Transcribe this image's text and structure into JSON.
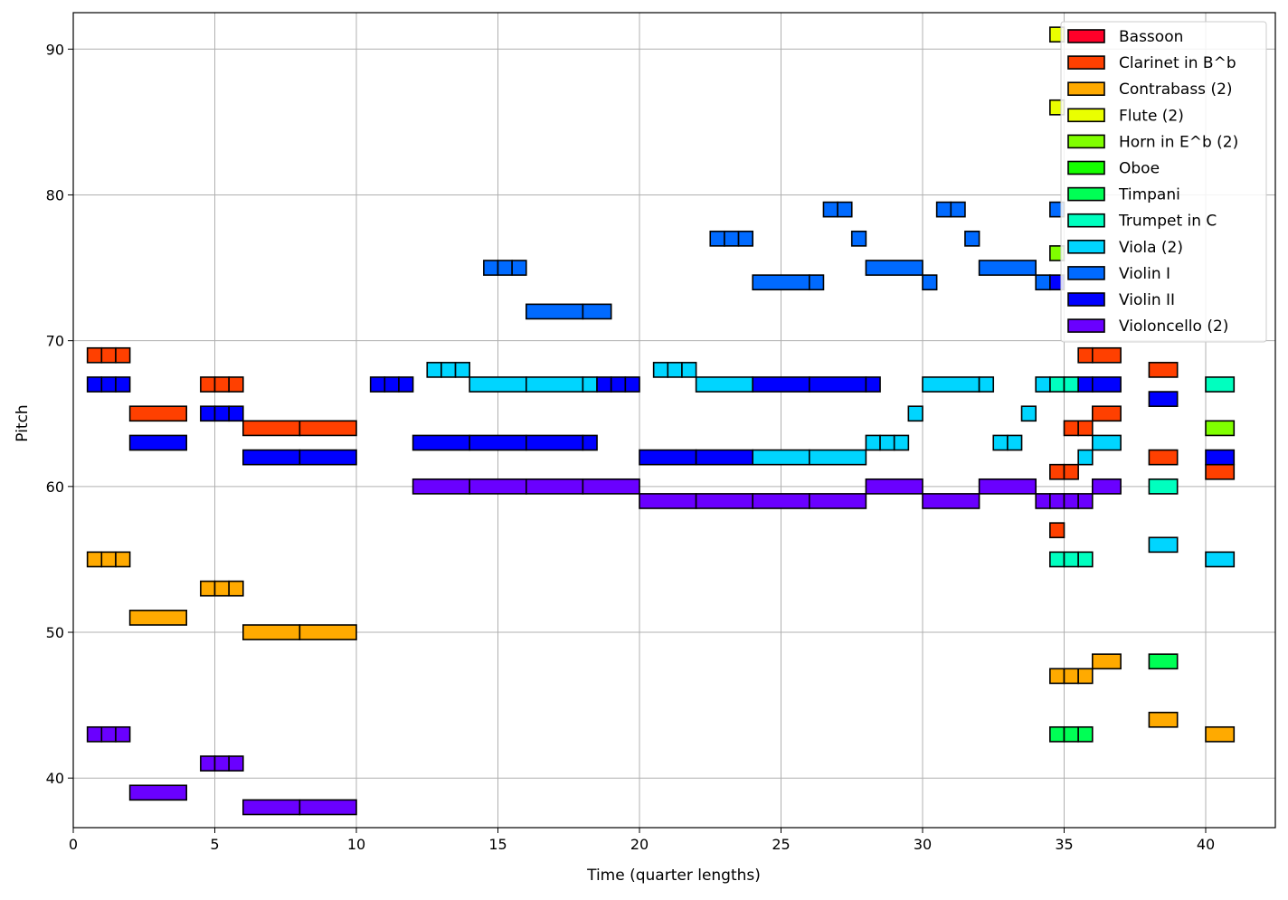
{
  "chart_data": {
    "type": "piano-roll",
    "title": "",
    "xlabel": "Time (quarter lengths)",
    "ylabel": "Pitch",
    "xlim": [
      0,
      42.46
    ],
    "ylim": [
      36.6,
      92.5
    ],
    "xticks": [
      0,
      5,
      10,
      15,
      20,
      25,
      30,
      35,
      40
    ],
    "yticks": [
      40,
      50,
      60,
      70,
      80,
      90
    ],
    "grid": true,
    "legend_position": "top-right",
    "series": [
      {
        "name": "Bassoon",
        "color": "#ff0029",
        "notes": []
      },
      {
        "name": "Clarinet in B^b",
        "color": "#ff4000",
        "notes": [
          [
            0.5,
            0.5,
            69
          ],
          [
            1,
            0.5,
            69
          ],
          [
            1.5,
            0.5,
            69
          ],
          [
            2,
            2,
            65
          ],
          [
            4.5,
            0.5,
            67
          ],
          [
            5,
            0.5,
            67
          ],
          [
            5.5,
            0.5,
            67
          ],
          [
            6,
            2,
            64
          ],
          [
            8,
            2,
            64
          ],
          [
            35.5,
            0.5,
            69
          ],
          [
            36,
            1,
            69
          ],
          [
            38,
            1,
            68
          ],
          [
            36,
            1,
            65
          ],
          [
            35,
            0.5,
            64
          ],
          [
            35.5,
            0.5,
            64
          ],
          [
            38,
            1,
            62
          ],
          [
            34.5,
            0.5,
            61
          ],
          [
            35,
            0.5,
            61
          ],
          [
            40,
            1,
            61
          ],
          [
            34.5,
            0.5,
            57
          ]
        ]
      },
      {
        "name": "Contrabass (2)",
        "color": "#ffaa00",
        "notes": [
          [
            0.5,
            0.5,
            55
          ],
          [
            1,
            0.5,
            55
          ],
          [
            1.5,
            0.5,
            55
          ],
          [
            2,
            2,
            51
          ],
          [
            4.5,
            0.5,
            53
          ],
          [
            5,
            0.5,
            53
          ],
          [
            5.5,
            0.5,
            53
          ],
          [
            6,
            2,
            50
          ],
          [
            8,
            2,
            50
          ],
          [
            36,
            1,
            48
          ],
          [
            34.5,
            0.5,
            47
          ],
          [
            35,
            0.5,
            47
          ],
          [
            35.5,
            0.5,
            47
          ],
          [
            38,
            1,
            44
          ],
          [
            40,
            1,
            43
          ]
        ]
      },
      {
        "name": "Flute (2)",
        "color": "#eaff00",
        "notes": [
          [
            34.5,
            0.5,
            91
          ],
          [
            34.5,
            0.5,
            86
          ]
        ]
      },
      {
        "name": "Horn in E^b (2)",
        "color": "#80ff00",
        "notes": [
          [
            34.5,
            0.5,
            76
          ],
          [
            40,
            1,
            64
          ]
        ]
      },
      {
        "name": "Oboe",
        "color": "#15ff00",
        "notes": []
      },
      {
        "name": "Timpani",
        "color": "#00ff55",
        "notes": [
          [
            38,
            1,
            48
          ],
          [
            34.5,
            0.5,
            43
          ],
          [
            35,
            0.5,
            43
          ],
          [
            35.5,
            0.5,
            43
          ]
        ]
      },
      {
        "name": "Trumpet in C",
        "color": "#00ffbf",
        "notes": [
          [
            34.5,
            0.5,
            67
          ],
          [
            35,
            0.5,
            67
          ],
          [
            40,
            1,
            67
          ],
          [
            38,
            1,
            60
          ],
          [
            34.5,
            0.5,
            55
          ],
          [
            35,
            0.5,
            55
          ],
          [
            35.5,
            0.5,
            55
          ]
        ]
      },
      {
        "name": "Viola (2)",
        "color": "#00d5ff",
        "notes": [
          [
            12.5,
            0.5,
            68
          ],
          [
            13,
            0.5,
            68
          ],
          [
            13.5,
            0.5,
            68
          ],
          [
            14,
            2,
            67
          ],
          [
            16,
            2,
            67
          ],
          [
            18,
            0.5,
            67
          ],
          [
            20.5,
            0.5,
            68
          ],
          [
            21,
            0.5,
            68
          ],
          [
            21.5,
            0.5,
            68
          ],
          [
            22,
            2,
            67
          ],
          [
            24,
            2,
            62
          ],
          [
            26,
            2,
            62
          ],
          [
            28,
            0.5,
            63
          ],
          [
            28.5,
            0.5,
            63
          ],
          [
            29,
            0.5,
            63
          ],
          [
            29.5,
            0.5,
            65
          ],
          [
            30,
            2,
            67
          ],
          [
            32,
            0.5,
            67
          ],
          [
            32.5,
            0.5,
            63
          ],
          [
            33,
            0.5,
            63
          ],
          [
            33.5,
            0.5,
            65
          ],
          [
            34,
            0.5,
            67
          ],
          [
            36,
            1,
            63
          ],
          [
            35.5,
            0.5,
            62
          ],
          [
            38,
            1,
            56
          ],
          [
            40,
            1,
            55
          ]
        ]
      },
      {
        "name": "Violin I",
        "color": "#006aff",
        "notes": [
          [
            14.5,
            0.5,
            75
          ],
          [
            15,
            0.5,
            75
          ],
          [
            15.5,
            0.5,
            75
          ],
          [
            16,
            2,
            72
          ],
          [
            18,
            1,
            72
          ],
          [
            22.5,
            0.5,
            77
          ],
          [
            23,
            0.5,
            77
          ],
          [
            23.5,
            0.5,
            77
          ],
          [
            24,
            2,
            74
          ],
          [
            26,
            0.5,
            74
          ],
          [
            26.5,
            0.5,
            79
          ],
          [
            27,
            0.5,
            79
          ],
          [
            27.5,
            0.5,
            77
          ],
          [
            28,
            2,
            75
          ],
          [
            30,
            0.5,
            74
          ],
          [
            30.5,
            0.5,
            79
          ],
          [
            31,
            0.5,
            79
          ],
          [
            31.5,
            0.5,
            77
          ],
          [
            32,
            2,
            75
          ],
          [
            34,
            0.5,
            74
          ],
          [
            34.5,
            0.5,
            79
          ]
        ]
      },
      {
        "name": "Violin II",
        "color": "#0000ff",
        "notes": [
          [
            0.5,
            0.5,
            67
          ],
          [
            1,
            0.5,
            67
          ],
          [
            1.5,
            0.5,
            67
          ],
          [
            2,
            2,
            63
          ],
          [
            4.5,
            0.5,
            65
          ],
          [
            5,
            0.5,
            65
          ],
          [
            5.5,
            0.5,
            65
          ],
          [
            6,
            2,
            62
          ],
          [
            8,
            2,
            62
          ],
          [
            10.5,
            0.5,
            67
          ],
          [
            11,
            0.5,
            67
          ],
          [
            11.5,
            0.5,
            67
          ],
          [
            12,
            2,
            63
          ],
          [
            14,
            2,
            63
          ],
          [
            16,
            2,
            63
          ],
          [
            18,
            0.5,
            63
          ],
          [
            18.5,
            0.5,
            67
          ],
          [
            19,
            0.5,
            67
          ],
          [
            19.5,
            0.5,
            67
          ],
          [
            20,
            2,
            62
          ],
          [
            22,
            2,
            62
          ],
          [
            24,
            2,
            67
          ],
          [
            26,
            2,
            67
          ],
          [
            28,
            0.5,
            67
          ],
          [
            34.5,
            0.5,
            74
          ],
          [
            35.5,
            0.5,
            67
          ],
          [
            36,
            1,
            67
          ],
          [
            38,
            1,
            66
          ],
          [
            40,
            1,
            62
          ]
        ]
      },
      {
        "name": "Violoncello (2)",
        "color": "#6a00ff",
        "notes": [
          [
            0.5,
            0.5,
            43
          ],
          [
            1,
            0.5,
            43
          ],
          [
            1.5,
            0.5,
            43
          ],
          [
            2,
            2,
            39
          ],
          [
            4.5,
            0.5,
            41
          ],
          [
            5,
            0.5,
            41
          ],
          [
            5.5,
            0.5,
            41
          ],
          [
            6,
            2,
            38
          ],
          [
            8,
            2,
            38
          ],
          [
            12,
            2,
            60
          ],
          [
            14,
            2,
            60
          ],
          [
            16,
            2,
            60
          ],
          [
            18,
            2,
            60
          ],
          [
            20,
            2,
            59
          ],
          [
            22,
            2,
            59
          ],
          [
            24,
            2,
            59
          ],
          [
            26,
            2,
            59
          ],
          [
            28,
            2,
            60
          ],
          [
            30,
            2,
            59
          ],
          [
            32,
            2,
            60
          ],
          [
            34,
            0.5,
            59
          ],
          [
            34.5,
            0.5,
            59
          ],
          [
            35,
            0.5,
            59
          ],
          [
            35.5,
            0.5,
            59
          ],
          [
            36,
            1,
            60
          ]
        ]
      }
    ]
  }
}
